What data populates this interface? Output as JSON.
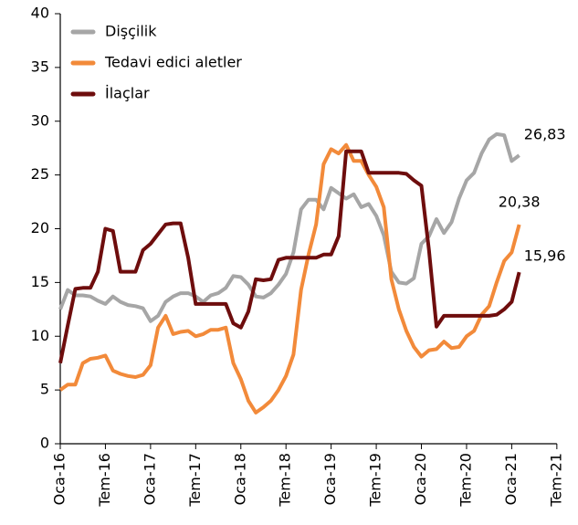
{
  "chart_data": {
    "type": "line",
    "categories": [
      "Oca-16",
      null,
      null,
      null,
      null,
      null,
      "Tem-16",
      null,
      null,
      null,
      null,
      null,
      "Oca-17",
      null,
      null,
      null,
      null,
      null,
      "Tem-17",
      null,
      null,
      null,
      null,
      null,
      "Oca-18",
      null,
      null,
      null,
      null,
      null,
      "Tem-18",
      null,
      null,
      null,
      null,
      null,
      "Oca-19",
      null,
      null,
      null,
      null,
      null,
      "Tem-19",
      null,
      null,
      null,
      null,
      null,
      "Oca-20",
      null,
      null,
      null,
      null,
      null,
      "Tem-20",
      null,
      null,
      null,
      null,
      null,
      "Oca-21",
      null,
      null,
      null,
      null,
      null,
      "Tem-21"
    ],
    "series": [
      {
        "name": "Dişçilik",
        "color": "#a6a6a6",
        "values": [
          12.5,
          14.3,
          13.8,
          13.8,
          13.7,
          13.3,
          13.0,
          13.7,
          13.2,
          12.9,
          12.8,
          12.6,
          11.4,
          11.9,
          13.2,
          13.7,
          14.0,
          14.0,
          13.7,
          13.2,
          13.8,
          14.0,
          14.5,
          15.6,
          15.5,
          14.8,
          13.7,
          13.6,
          14.0,
          14.8,
          15.8,
          17.8,
          21.8,
          22.7,
          22.7,
          21.8,
          23.8,
          23.3,
          22.8,
          23.2,
          22.0,
          22.3,
          21.2,
          19.4,
          16.0,
          15.0,
          14.9,
          15.4,
          18.6,
          19.3,
          20.9,
          19.6,
          20.6,
          22.8,
          24.5,
          25.2,
          27.0,
          28.3,
          28.8,
          28.7,
          26.3,
          26.83,
          null,
          null,
          null,
          null,
          null
        ],
        "value_labels": [
          null,
          null,
          null,
          null,
          null,
          null,
          null,
          null,
          null,
          null,
          null,
          null,
          null,
          null,
          null,
          null,
          null,
          null,
          null,
          null,
          null,
          null,
          null,
          null,
          null,
          null,
          null,
          null,
          null,
          null,
          null,
          null,
          null,
          null,
          null,
          null,
          null,
          null,
          null,
          null,
          null,
          null,
          null,
          null,
          null,
          null,
          null,
          null,
          null,
          null,
          null,
          null,
          null,
          null,
          null,
          null,
          null,
          null,
          null,
          null,
          null,
          "26,83",
          null,
          null,
          null,
          null,
          null
        ]
      },
      {
        "name": "Tedavi edici aletler",
        "color": "#f28a3a",
        "values": [
          5.0,
          5.5,
          5.5,
          7.5,
          7.9,
          8.0,
          8.2,
          6.8,
          6.5,
          6.3,
          6.2,
          6.4,
          7.3,
          10.8,
          11.9,
          10.2,
          10.4,
          10.5,
          10.0,
          10.2,
          10.6,
          10.6,
          10.8,
          7.5,
          6.0,
          4.0,
          2.9,
          3.4,
          4.0,
          5.0,
          6.3,
          8.3,
          14.3,
          17.6,
          20.4,
          26.0,
          27.4,
          27.0,
          27.8,
          26.3,
          26.3,
          25.0,
          23.9,
          22.0,
          15.3,
          12.5,
          10.5,
          9.0,
          8.1,
          8.7,
          8.8,
          9.5,
          8.9,
          9.0,
          10.0,
          10.5,
          12.0,
          12.8,
          15.0,
          17.0,
          17.8,
          20.38,
          null,
          null,
          null,
          null,
          null
        ],
        "value_labels": [
          null,
          null,
          null,
          null,
          null,
          null,
          null,
          null,
          null,
          null,
          null,
          null,
          null,
          null,
          null,
          null,
          null,
          null,
          null,
          null,
          null,
          null,
          null,
          null,
          null,
          null,
          null,
          null,
          null,
          null,
          null,
          null,
          null,
          null,
          null,
          null,
          null,
          null,
          null,
          null,
          null,
          null,
          null,
          null,
          null,
          null,
          null,
          null,
          null,
          null,
          null,
          null,
          null,
          null,
          null,
          null,
          null,
          null,
          null,
          null,
          null,
          "20,38",
          null,
          null,
          null,
          null,
          null
        ]
      },
      {
        "name": "İlaçlar",
        "color": "#6e0d0d",
        "values": [
          7.5,
          11.0,
          14.4,
          14.5,
          14.5,
          16.0,
          20.0,
          19.8,
          16.0,
          16.0,
          16.0,
          18.0,
          18.6,
          19.5,
          20.4,
          20.5,
          20.5,
          17.3,
          13.0,
          13.0,
          13.0,
          13.0,
          13.0,
          11.2,
          10.8,
          12.3,
          15.3,
          15.2,
          15.3,
          17.1,
          17.3,
          17.3,
          17.3,
          17.3,
          17.3,
          17.6,
          17.6,
          19.3,
          27.2,
          27.2,
          27.2,
          25.2,
          25.2,
          25.2,
          25.2,
          25.2,
          25.1,
          24.5,
          24.0,
          18.0,
          10.9,
          11.9,
          11.9,
          11.9,
          11.9,
          11.9,
          11.9,
          11.9,
          12.0,
          12.5,
          13.2,
          15.96,
          null,
          null,
          null,
          null,
          null
        ],
        "value_labels": [
          null,
          null,
          null,
          null,
          null,
          null,
          null,
          null,
          null,
          null,
          null,
          null,
          null,
          null,
          null,
          null,
          null,
          null,
          null,
          null,
          null,
          null,
          null,
          null,
          null,
          null,
          null,
          null,
          null,
          null,
          null,
          null,
          null,
          null,
          null,
          null,
          null,
          null,
          null,
          null,
          null,
          null,
          null,
          null,
          null,
          null,
          null,
          null,
          null,
          null,
          null,
          null,
          null,
          null,
          null,
          null,
          null,
          null,
          null,
          null,
          null,
          "15,96",
          null,
          null,
          null,
          null,
          null
        ]
      }
    ],
    "ylim": [
      0,
      40
    ],
    "yticks": [
      0,
      5,
      10,
      15,
      20,
      25,
      30,
      35,
      40
    ],
    "grid": false,
    "legend": "upper left"
  }
}
